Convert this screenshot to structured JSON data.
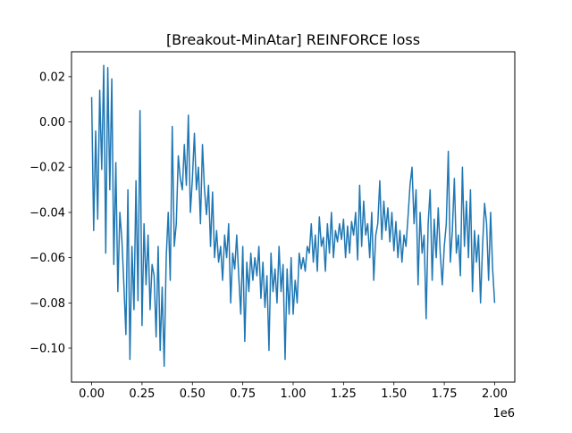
{
  "chart_data": {
    "type": "line",
    "title": "[Breakout-MinAtar] REINFORCE loss",
    "xlabel": "",
    "ylabel": "",
    "x_offset_label": "1e6",
    "x_scale_factor": 1000000,
    "xlim": [
      -0.1,
      2.1
    ],
    "ylim": [
      -0.115,
      0.031
    ],
    "x_ticks": [
      0.0,
      0.25,
      0.5,
      0.75,
      1.0,
      1.25,
      1.5,
      1.75,
      2.0
    ],
    "x_tick_labels": [
      "0.00",
      "0.25",
      "0.50",
      "0.75",
      "1.00",
      "1.25",
      "1.50",
      "1.75",
      "2.00"
    ],
    "y_ticks": [
      0.02,
      0.0,
      -0.02,
      -0.04,
      -0.06,
      -0.08,
      -0.1
    ],
    "y_tick_labels": [
      "0.02",
      "0.00",
      "−0.02",
      "−0.04",
      "−0.06",
      "−0.08",
      "−0.10"
    ],
    "grid": false,
    "legend": "none",
    "series": [
      {
        "color": "#1f77b4",
        "x": [
          0.0,
          0.01,
          0.02,
          0.03,
          0.04,
          0.05,
          0.06,
          0.07,
          0.08,
          0.09,
          0.1,
          0.11,
          0.12,
          0.13,
          0.14,
          0.15,
          0.16,
          0.17,
          0.18,
          0.19,
          0.2,
          0.21,
          0.22,
          0.23,
          0.24,
          0.25,
          0.26,
          0.27,
          0.28,
          0.29,
          0.3,
          0.31,
          0.32,
          0.33,
          0.34,
          0.35,
          0.36,
          0.37,
          0.38,
          0.39,
          0.4,
          0.41,
          0.42,
          0.43,
          0.44,
          0.45,
          0.46,
          0.47,
          0.48,
          0.49,
          0.5,
          0.51,
          0.52,
          0.53,
          0.54,
          0.55,
          0.56,
          0.57,
          0.58,
          0.59,
          0.6,
          0.61,
          0.62,
          0.63,
          0.64,
          0.65,
          0.66,
          0.67,
          0.68,
          0.69,
          0.7,
          0.71,
          0.72,
          0.73,
          0.74,
          0.75,
          0.76,
          0.77,
          0.78,
          0.79,
          0.8,
          0.81,
          0.82,
          0.83,
          0.84,
          0.85,
          0.86,
          0.87,
          0.88,
          0.89,
          0.9,
          0.91,
          0.92,
          0.93,
          0.94,
          0.95,
          0.96,
          0.97,
          0.98,
          0.99,
          1.0,
          1.01,
          1.02,
          1.03,
          1.04,
          1.05,
          1.06,
          1.07,
          1.08,
          1.09,
          1.1,
          1.11,
          1.12,
          1.13,
          1.14,
          1.15,
          1.16,
          1.17,
          1.18,
          1.19,
          1.2,
          1.21,
          1.22,
          1.23,
          1.24,
          1.25,
          1.26,
          1.27,
          1.28,
          1.29,
          1.3,
          1.31,
          1.32,
          1.33,
          1.34,
          1.35,
          1.36,
          1.37,
          1.38,
          1.39,
          1.4,
          1.41,
          1.42,
          1.43,
          1.44,
          1.45,
          1.46,
          1.47,
          1.48,
          1.49,
          1.5,
          1.51,
          1.52,
          1.53,
          1.54,
          1.55,
          1.56,
          1.57,
          1.58,
          1.59,
          1.6,
          1.61,
          1.62,
          1.63,
          1.64,
          1.65,
          1.66,
          1.67,
          1.68,
          1.69,
          1.7,
          1.71,
          1.72,
          1.73,
          1.74,
          1.75,
          1.76,
          1.77,
          1.78,
          1.79,
          1.8,
          1.81,
          1.82,
          1.83,
          1.84,
          1.85,
          1.86,
          1.87,
          1.88,
          1.89,
          1.9,
          1.91,
          1.92,
          1.93,
          1.94,
          1.95,
          1.96,
          1.97,
          1.98,
          1.99,
          2.0
        ],
        "y": [
          0.011,
          -0.048,
          -0.004,
          -0.043,
          0.014,
          -0.021,
          0.025,
          -0.058,
          0.024,
          -0.03,
          0.019,
          -0.063,
          -0.018,
          -0.075,
          -0.04,
          -0.052,
          -0.072,
          -0.094,
          -0.03,
          -0.105,
          -0.055,
          -0.083,
          -0.026,
          -0.079,
          0.005,
          -0.09,
          -0.045,
          -0.072,
          -0.05,
          -0.083,
          -0.063,
          -0.068,
          -0.095,
          -0.055,
          -0.101,
          -0.073,
          -0.108,
          -0.06,
          -0.04,
          -0.07,
          -0.002,
          -0.055,
          -0.045,
          -0.015,
          -0.025,
          -0.03,
          -0.01,
          -0.028,
          0.003,
          -0.04,
          -0.025,
          -0.005,
          -0.03,
          -0.02,
          -0.045,
          -0.01,
          -0.03,
          -0.041,
          -0.028,
          -0.055,
          -0.031,
          -0.06,
          -0.048,
          -0.062,
          -0.055,
          -0.07,
          -0.05,
          -0.06,
          -0.045,
          -0.08,
          -0.058,
          -0.065,
          -0.05,
          -0.068,
          -0.085,
          -0.055,
          -0.097,
          -0.062,
          -0.075,
          -0.058,
          -0.07,
          -0.06,
          -0.068,
          -0.055,
          -0.078,
          -0.062,
          -0.082,
          -0.068,
          -0.101,
          -0.058,
          -0.075,
          -0.065,
          -0.08,
          -0.055,
          -0.075,
          -0.063,
          -0.105,
          -0.065,
          -0.085,
          -0.06,
          -0.085,
          -0.07,
          -0.08,
          -0.058,
          -0.065,
          -0.06,
          -0.066,
          -0.055,
          -0.058,
          -0.045,
          -0.062,
          -0.05,
          -0.066,
          -0.042,
          -0.055,
          -0.051,
          -0.066,
          -0.045,
          -0.058,
          -0.04,
          -0.06,
          -0.048,
          -0.053,
          -0.045,
          -0.052,
          -0.043,
          -0.06,
          -0.046,
          -0.058,
          -0.044,
          -0.05,
          -0.04,
          -0.061,
          -0.028,
          -0.055,
          -0.035,
          -0.05,
          -0.045,
          -0.06,
          -0.04,
          -0.07,
          -0.05,
          -0.045,
          -0.026,
          -0.052,
          -0.035,
          -0.048,
          -0.038,
          -0.053,
          -0.04,
          -0.057,
          -0.044,
          -0.06,
          -0.048,
          -0.062,
          -0.05,
          -0.055,
          -0.042,
          -0.028,
          -0.02,
          -0.045,
          -0.03,
          -0.072,
          -0.04,
          -0.058,
          -0.05,
          -0.087,
          -0.045,
          -0.03,
          -0.07,
          -0.043,
          -0.06,
          -0.038,
          -0.058,
          -0.072,
          -0.055,
          -0.045,
          -0.013,
          -0.062,
          -0.048,
          -0.025,
          -0.058,
          -0.05,
          -0.068,
          -0.02,
          -0.055,
          -0.035,
          -0.06,
          -0.03,
          -0.075,
          -0.048,
          -0.062,
          -0.05,
          -0.08,
          -0.055,
          -0.036,
          -0.045,
          -0.07,
          -0.04,
          -0.065,
          -0.08
        ]
      }
    ]
  }
}
